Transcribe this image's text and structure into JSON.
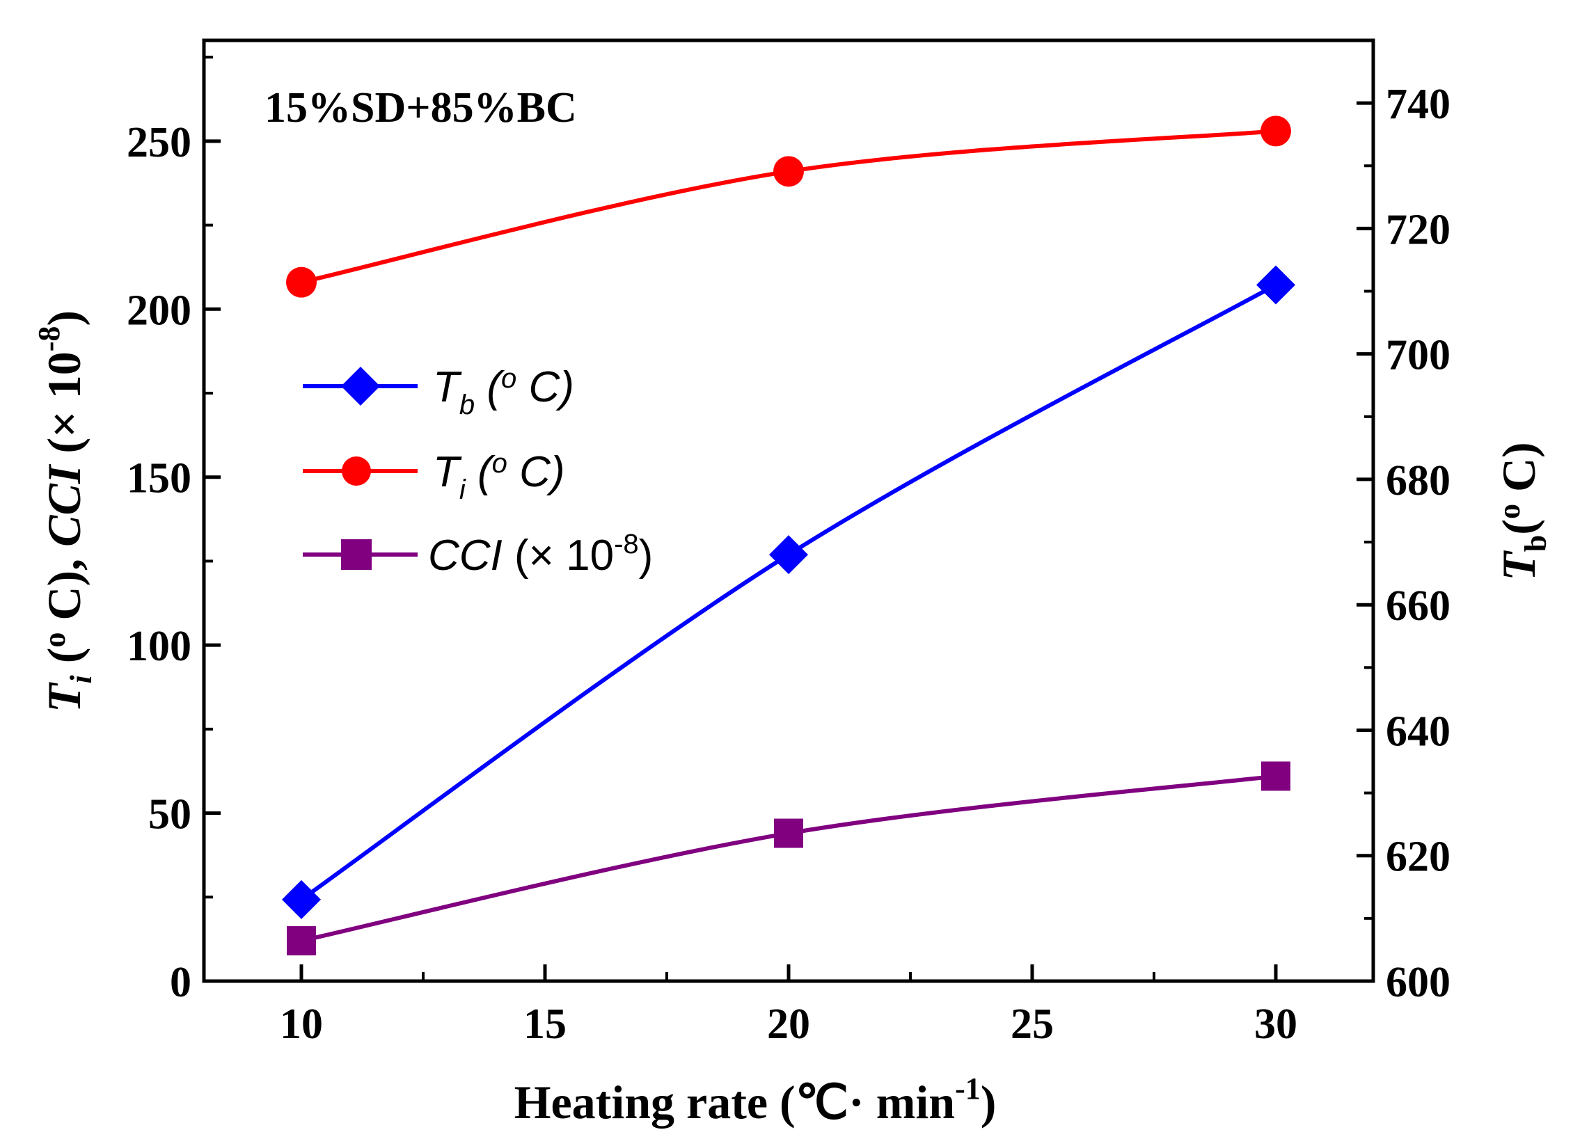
{
  "chart_data": {
    "type": "line",
    "annotation": "15%SD+85%BC",
    "xlabel": "Heating rate (℃· min⁻¹)",
    "ylabel_left": "Ti (◦C),  CCI (× 10⁻⁸)",
    "ylabel_right": "Tb(◦C)",
    "x_ticks": [
      10,
      15,
      20,
      25,
      30
    ],
    "x_range": [
      8,
      32
    ],
    "y_left_ticks": [
      0,
      50,
      100,
      150,
      200,
      250
    ],
    "y_left_range": [
      0,
      280
    ],
    "y_right_ticks": [
      600,
      620,
      640,
      660,
      680,
      700,
      720,
      740
    ],
    "y_right_range": [
      600,
      750
    ],
    "x": [
      10,
      20,
      30
    ],
    "series": [
      {
        "name": "Tb (◦C)",
        "axis": "right",
        "marker": "diamond",
        "color": "#0000ff",
        "values": [
          613,
          668,
          711
        ]
      },
      {
        "name": "Ti (◦C)",
        "axis": "left",
        "marker": "circle",
        "color": "#ff0000",
        "values": [
          208,
          241,
          253
        ]
      },
      {
        "name": "CCI (× 10⁻⁸)",
        "axis": "left",
        "marker": "square",
        "color": "#800080",
        "values": [
          12,
          44,
          61
        ]
      }
    ],
    "legend_placement": "center-left",
    "grid": false
  }
}
